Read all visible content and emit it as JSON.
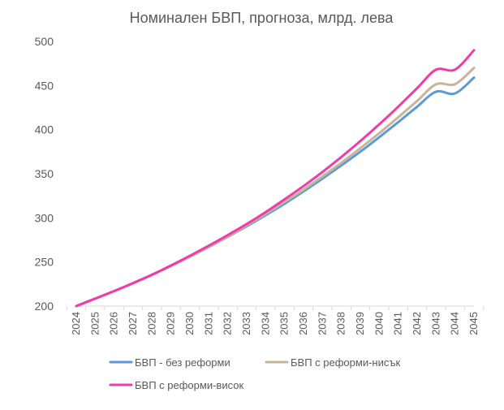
{
  "chart_data": {
    "type": "line",
    "title": "Номинален БВП, прогноза, млрд. лева",
    "xlabel": "",
    "ylabel": "",
    "x": [
      "2024",
      "2025",
      "2026",
      "2027",
      "2028",
      "2029",
      "2030",
      "2031",
      "2032",
      "2033",
      "2034",
      "2035",
      "2036",
      "2037",
      "2038",
      "2039",
      "2040",
      "2041",
      "2042",
      "2043",
      "2044",
      "2045"
    ],
    "ylim": [
      200,
      500
    ],
    "yticks": [
      200,
      250,
      300,
      350,
      400,
      450,
      500
    ],
    "grid": false,
    "legend_position": "bottom",
    "series": [
      {
        "name": "БВП - без реформи",
        "color": "#5b9bd5",
        "values": [
          200,
          208.5,
          217,
          226,
          235.5,
          245.5,
          256,
          267,
          278.5,
          290.5,
          303,
          316,
          330,
          344.5,
          359.5,
          375,
          391.5,
          408.5,
          426,
          443,
          441,
          459
        ]
      },
      {
        "name": "БВП с реформи-нисък",
        "color": "#c9b49a",
        "values": [
          200,
          208.5,
          217,
          226,
          235.5,
          245.5,
          256,
          267.5,
          279,
          291.5,
          304.5,
          318,
          332,
          347,
          362.5,
          379,
          396,
          414,
          432.5,
          451.5,
          451.5,
          470
        ]
      },
      {
        "name": "БВП с реформи-висок",
        "color": "#f03bab",
        "values": [
          200,
          208.5,
          217,
          226,
          235.5,
          246,
          257,
          268.5,
          280.5,
          293,
          306.5,
          321,
          336,
          352,
          369,
          387,
          406,
          426,
          447,
          468,
          468,
          490
        ]
      }
    ]
  }
}
